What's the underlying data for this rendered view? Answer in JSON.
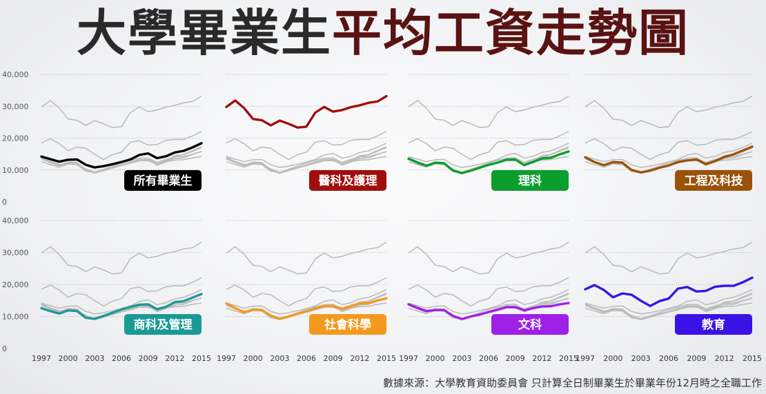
{
  "title": {
    "part1": "大學畢業生",
    "part2": "平均工資走勢圖"
  },
  "source": "數據來源：大學教育資助委員會 只計算全日制畢業生於畢業年份12月時之全職工作",
  "colors": {
    "grey": "#bcbcbc",
    "grid": "#9a9a9a"
  },
  "chart_data": {
    "type": "line",
    "x": [
      1997,
      1998,
      1999,
      2000,
      2001,
      2002,
      2003,
      2004,
      2005,
      2006,
      2007,
      2008,
      2009,
      2010,
      2011,
      2012,
      2013,
      2014,
      2015
    ],
    "ylim": [
      0,
      40000
    ],
    "y_ticks": [
      "0",
      "10,000",
      "20,000",
      "30,000",
      "40,000"
    ],
    "x_ticks": [
      "1997",
      "2000",
      "2003",
      "2006",
      "2009",
      "2012",
      "2015"
    ],
    "series": [
      {
        "name": "所有畢業生",
        "color": "#000000",
        "values": [
          14200,
          13400,
          12600,
          13200,
          13300,
          11600,
          10800,
          11200,
          11800,
          12500,
          13300,
          14700,
          15200,
          13700,
          14300,
          15500,
          16000,
          17100,
          18400
        ]
      },
      {
        "name": "醫科及護理",
        "color": "#a10d0d",
        "values": [
          29800,
          31800,
          29400,
          26000,
          25600,
          24000,
          25500,
          24500,
          23300,
          23600,
          28000,
          29800,
          28300,
          28800,
          29700,
          30300,
          31100,
          31500,
          33200
        ]
      },
      {
        "name": "理科",
        "color": "#0c9e2c",
        "values": [
          13500,
          12300,
          11300,
          12300,
          12100,
          9800,
          9000,
          9800,
          10700,
          11600,
          12300,
          13200,
          13300,
          11500,
          12500,
          13600,
          13800,
          14900,
          15800
        ]
      },
      {
        "name": "工程及科技",
        "color": "#9a520a",
        "values": [
          14000,
          12500,
          11500,
          12500,
          12300,
          10000,
          9200,
          9800,
          10700,
          11400,
          12500,
          13000,
          13300,
          11800,
          12800,
          14100,
          14900,
          16100,
          17300
        ]
      },
      {
        "name": "商科及管理",
        "color": "#1a9a96",
        "values": [
          12600,
          11700,
          10900,
          11900,
          11700,
          9600,
          9300,
          10200,
          11200,
          12200,
          13000,
          13700,
          13800,
          12300,
          13000,
          14500,
          14800,
          15900,
          17000
        ]
      },
      {
        "name": "社會科學",
        "color": "#f39a1e",
        "values": [
          14100,
          12600,
          11300,
          12100,
          12000,
          10300,
          9300,
          10000,
          10800,
          11600,
          12500,
          13300,
          13300,
          12400,
          13300,
          14100,
          14200,
          15000,
          15700
        ]
      },
      {
        "name": "文科",
        "color": "#a020e8",
        "values": [
          13800,
          12700,
          11700,
          12000,
          12000,
          10200,
          9200,
          10000,
          10600,
          11400,
          12100,
          12900,
          12900,
          11900,
          12600,
          13100,
          13200,
          13800,
          14200
        ]
      },
      {
        "name": "教育",
        "color": "#3a12e6",
        "values": [
          18500,
          19800,
          18300,
          16000,
          17200,
          16800,
          14900,
          13300,
          14800,
          15600,
          18700,
          19200,
          17800,
          18000,
          19300,
          19600,
          19600,
          20700,
          22100
        ]
      }
    ]
  }
}
